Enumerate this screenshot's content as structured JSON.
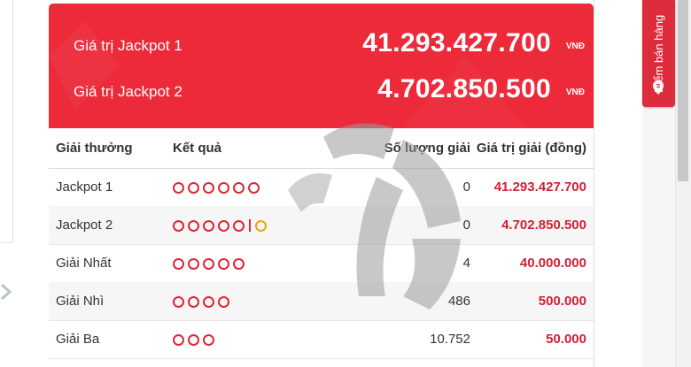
{
  "jackpots": [
    {
      "label": "Giá trị Jackpot 1",
      "value": "41.293.427.700",
      "unit": "VNĐ"
    },
    {
      "label": "Giá trị Jackpot 2",
      "value": "4.702.850.500",
      "unit": "VNĐ"
    }
  ],
  "table": {
    "headers": [
      "Giải thưởng",
      "Kết quả",
      "Số lượng giải",
      "Giá trị giải (đồng)"
    ],
    "rows": [
      {
        "prize": "Jackpot 1",
        "balls": 6,
        "special": false,
        "qty": "0",
        "value": "41.293.427.700"
      },
      {
        "prize": "Jackpot 2",
        "balls": 5,
        "special": true,
        "qty": "0",
        "value": "4.702.850.500"
      },
      {
        "prize": "Giải Nhất",
        "balls": 5,
        "special": false,
        "qty": "4",
        "value": "40.000.000"
      },
      {
        "prize": "Giải Nhì",
        "balls": 4,
        "special": false,
        "qty": "486",
        "value": "500.000"
      },
      {
        "prize": "Giải Ba",
        "balls": 3,
        "special": false,
        "qty": "10.752",
        "value": "50.000"
      }
    ]
  },
  "store_tab": {
    "label": "Điểm bán hàng"
  },
  "icons": {
    "store": "location-pin-icon",
    "nav": "chevron-right-icon",
    "watermark": "logo-watermark"
  },
  "colors": {
    "accent": "#ec2a3a",
    "value_text": "#d21f33",
    "ball": "#e02636",
    "special_ball": "#f0a400"
  }
}
